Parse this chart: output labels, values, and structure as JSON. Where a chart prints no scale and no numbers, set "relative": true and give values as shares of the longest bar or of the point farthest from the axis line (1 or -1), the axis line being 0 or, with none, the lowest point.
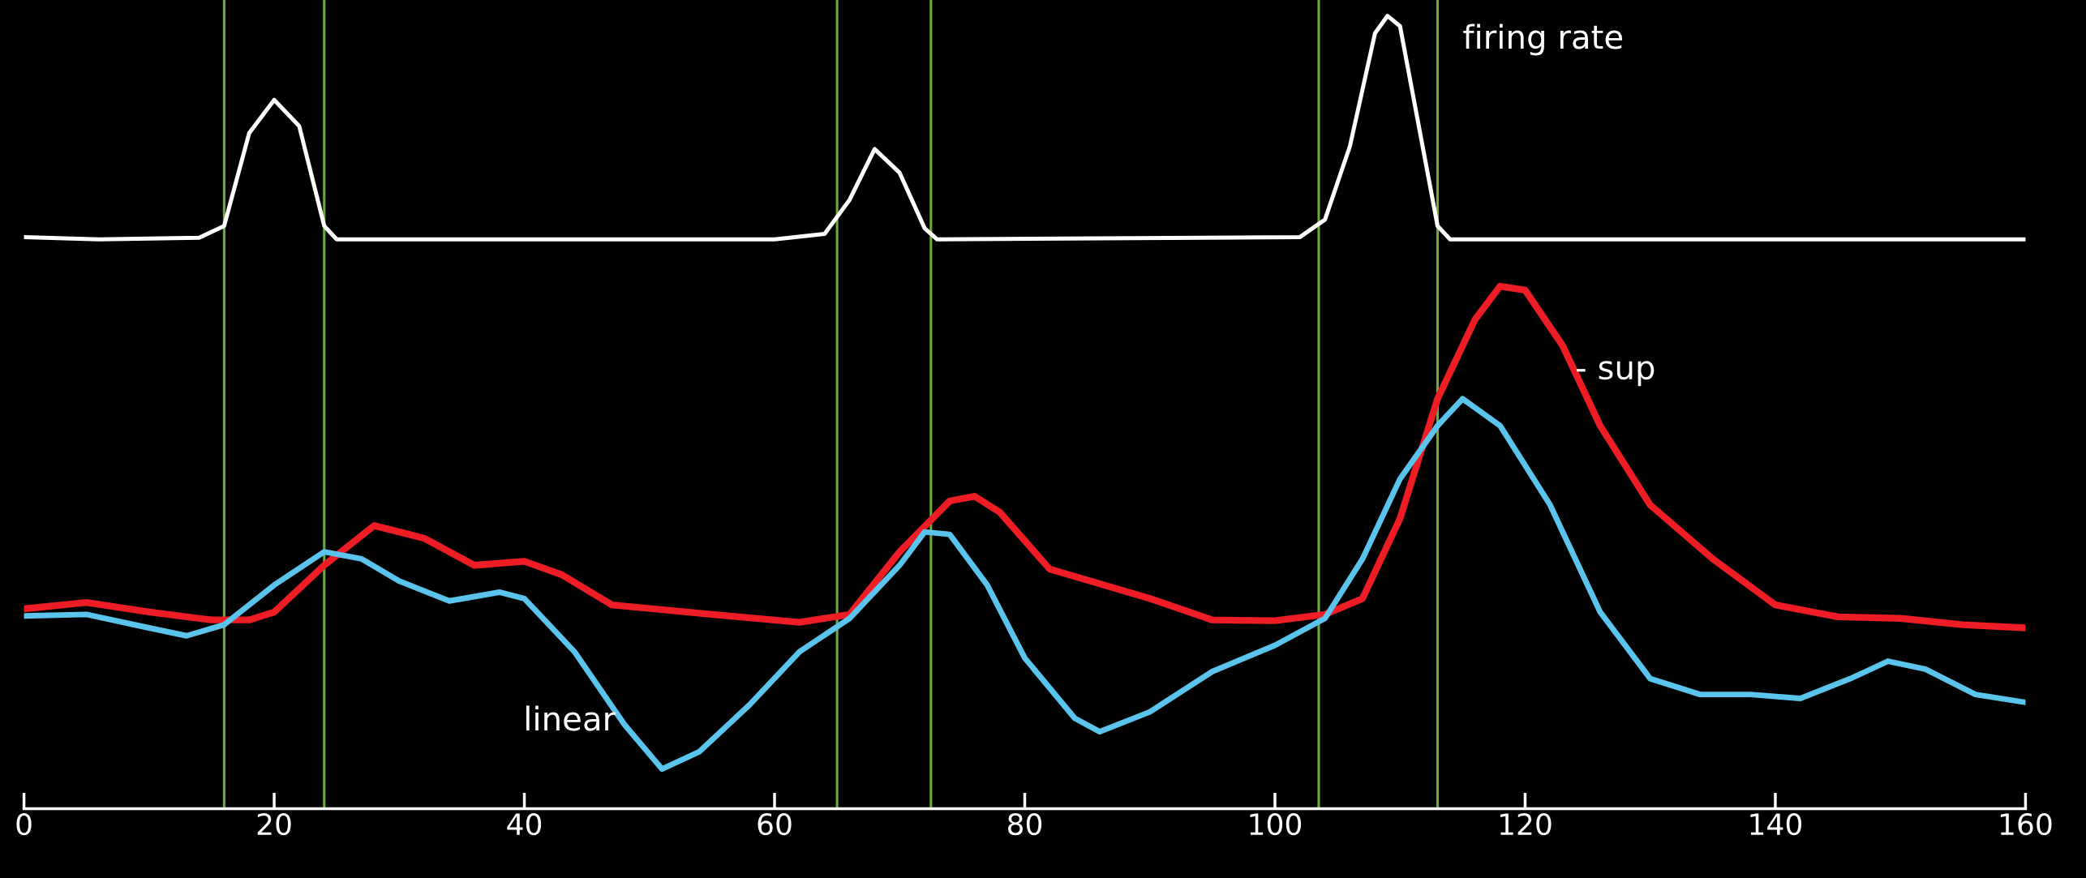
{
  "chart_data": {
    "type": "line",
    "relative": true,
    "xlim": [
      0,
      160
    ],
    "xticks": [
      0,
      20,
      40,
      60,
      80,
      100,
      120,
      140,
      160
    ],
    "tick_labels": "x",
    "grid": false,
    "legend": false,
    "marker": "none",
    "line_style": "solid",
    "series": [
      {
        "name": "firing rate",
        "color": "#ffffff",
        "x": [
          0,
          6,
          14,
          16,
          18,
          20,
          22,
          24,
          25,
          60,
          64,
          66,
          68,
          70,
          72,
          73,
          102,
          104,
          106,
          108,
          109,
          110,
          112,
          113,
          114,
          160
        ],
        "values": [
          0.721,
          0.718,
          0.72,
          0.735,
          0.852,
          0.894,
          0.861,
          0.735,
          0.718,
          0.718,
          0.725,
          0.768,
          0.832,
          0.802,
          0.732,
          0.718,
          0.721,
          0.743,
          0.836,
          0.978,
          1.0,
          0.987,
          0.819,
          0.735,
          0.718,
          0.718
        ]
      },
      {
        "name": "- sup",
        "color": "#ee1c25",
        "x": [
          0,
          5,
          10,
          15,
          18,
          20,
          24,
          28,
          32,
          36,
          40,
          43,
          47,
          55,
          62,
          66,
          70,
          74,
          76,
          78,
          82,
          90,
          95,
          100,
          104,
          107,
          110,
          113,
          116,
          118,
          120,
          123,
          126,
          130,
          135,
          140,
          145,
          150,
          155,
          160
        ],
        "values": [
          0.252,
          0.26,
          0.248,
          0.238,
          0.238,
          0.248,
          0.307,
          0.357,
          0.341,
          0.307,
          0.312,
          0.295,
          0.257,
          0.245,
          0.235,
          0.245,
          0.324,
          0.388,
          0.394,
          0.374,
          0.302,
          0.265,
          0.238,
          0.237,
          0.245,
          0.265,
          0.366,
          0.517,
          0.617,
          0.659,
          0.654,
          0.584,
          0.483,
          0.383,
          0.315,
          0.257,
          0.242,
          0.24,
          0.232,
          0.228
        ]
      },
      {
        "name": "linear",
        "color": "#5bc4ec",
        "x": [
          0,
          5,
          10,
          13,
          16,
          20,
          24,
          27,
          30,
          34,
          38,
          40,
          44,
          48,
          51,
          54,
          58,
          62,
          66,
          70,
          72,
          74,
          77,
          80,
          84,
          86,
          90,
          95,
          100,
          104,
          107,
          110,
          113,
          115,
          118,
          122,
          126,
          130,
          134,
          138,
          142,
          146,
          149,
          152,
          156,
          160
        ],
        "values": [
          0.243,
          0.245,
          0.228,
          0.218,
          0.232,
          0.282,
          0.324,
          0.315,
          0.287,
          0.262,
          0.273,
          0.265,
          0.198,
          0.106,
          0.05,
          0.072,
          0.131,
          0.198,
          0.24,
          0.307,
          0.349,
          0.346,
          0.282,
          0.19,
          0.114,
          0.097,
          0.122,
          0.173,
          0.206,
          0.24,
          0.315,
          0.416,
          0.483,
          0.517,
          0.483,
          0.383,
          0.248,
          0.164,
          0.144,
          0.144,
          0.139,
          0.164,
          0.186,
          0.176,
          0.144,
          0.134
        ]
      }
    ],
    "ref_lines": [
      {
        "axis": "x",
        "value": 16,
        "color": "#6aab3c"
      },
      {
        "axis": "x",
        "value": 24,
        "color": "#6aab3c"
      },
      {
        "axis": "x",
        "value": 65,
        "color": "#6aab3c"
      },
      {
        "axis": "x",
        "value": 72.5,
        "color": "#6aab3c"
      },
      {
        "axis": "x",
        "value": 103.5,
        "color": "#6aab3c"
      },
      {
        "axis": "x",
        "value": 113,
        "color": "#6aab3c"
      }
    ]
  }
}
